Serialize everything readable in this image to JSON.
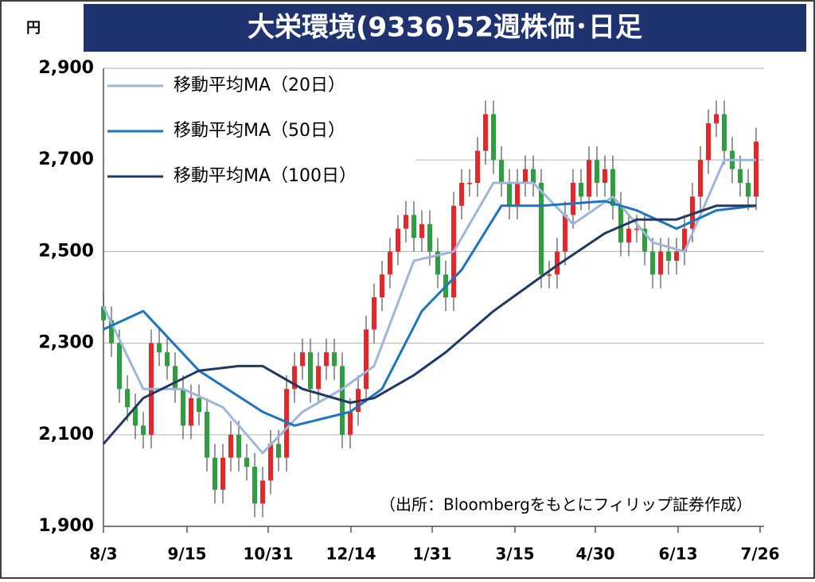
{
  "chart_data": {
    "type": "candlestick",
    "title": "大栄環境(9336)52週株価･日足",
    "y_unit": "円",
    "note": "（出所：Bloombergをもとにフィリップ証券作成）",
    "up_color": "#e8262a",
    "down_color": "#2e9e3f",
    "x": [
      0,
      1,
      2,
      3,
      4,
      5,
      6,
      7,
      8,
      9,
      10,
      11,
      12,
      13,
      14,
      15,
      16,
      17,
      18,
      19,
      20,
      21,
      22,
      23,
      24,
      25,
      26,
      27,
      28,
      29,
      30,
      31,
      32,
      33,
      34,
      35,
      36,
      37,
      38,
      39,
      40,
      41,
      42,
      43,
      44,
      45,
      46,
      47,
      48,
      49,
      50,
      51,
      52,
      53,
      54,
      55,
      56,
      57,
      58,
      59,
      60,
      61,
      62,
      63,
      64,
      65,
      66,
      67,
      68,
      69,
      70,
      71,
      72,
      73,
      74,
      75,
      76,
      77,
      78,
      79,
      80,
      81,
      82
    ],
    "open": [
      2380,
      2350,
      2300,
      2200,
      2160,
      2120,
      2100,
      2300,
      2280,
      2250,
      2200,
      2120,
      2180,
      2150,
      2050,
      1980,
      2050,
      2100,
      2050,
      2030,
      1950,
      2000,
      2080,
      2050,
      2200,
      2250,
      2280,
      2200,
      2250,
      2280,
      2250,
      2100,
      2150,
      2200,
      2330,
      2400,
      2450,
      2500,
      2550,
      2580,
      2530,
      2560,
      2500,
      2450,
      2400,
      2600,
      2650,
      2650,
      2720,
      2800,
      2700,
      2650,
      2600,
      2650,
      2680,
      2650,
      2450,
      2450,
      2500,
      2580,
      2650,
      2620,
      2700,
      2650,
      2680,
      2600,
      2520,
      2550,
      2550,
      2500,
      2450,
      2500,
      2480,
      2500,
      2550,
      2620,
      2700,
      2780,
      2800,
      2720,
      2680,
      2650,
      2620
    ],
    "high": [
      2410,
      2380,
      2330,
      2230,
      2190,
      2150,
      2330,
      2330,
      2310,
      2280,
      2230,
      2210,
      2210,
      2180,
      2080,
      2080,
      2130,
      2130,
      2080,
      2060,
      2030,
      2110,
      2110,
      2230,
      2280,
      2310,
      2310,
      2280,
      2310,
      2310,
      2280,
      2180,
      2230,
      2360,
      2430,
      2480,
      2530,
      2580,
      2610,
      2610,
      2590,
      2590,
      2530,
      2480,
      2630,
      2680,
      2680,
      2750,
      2830,
      2830,
      2730,
      2680,
      2680,
      2710,
      2710,
      2680,
      2480,
      2530,
      2610,
      2680,
      2680,
      2730,
      2730,
      2710,
      2710,
      2630,
      2580,
      2580,
      2580,
      2530,
      2530,
      2530,
      2530,
      2580,
      2650,
      2730,
      2810,
      2830,
      2830,
      2750,
      2710,
      2680,
      2770
    ],
    "low": [
      2320,
      2270,
      2170,
      2130,
      2090,
      2070,
      2070,
      2250,
      2220,
      2170,
      2090,
      2090,
      2120,
      2020,
      1950,
      1950,
      2020,
      2020,
      2000,
      1920,
      1920,
      1970,
      2020,
      2020,
      2170,
      2220,
      2170,
      2170,
      2220,
      2220,
      2070,
      2070,
      2120,
      2170,
      2300,
      2370,
      2420,
      2470,
      2520,
      2500,
      2500,
      2470,
      2420,
      2370,
      2370,
      2570,
      2620,
      2620,
      2690,
      2670,
      2620,
      2570,
      2570,
      2620,
      2620,
      2420,
      2420,
      2420,
      2470,
      2550,
      2590,
      2590,
      2620,
      2620,
      2570,
      2490,
      2490,
      2520,
      2470,
      2420,
      2420,
      2450,
      2450,
      2470,
      2520,
      2590,
      2670,
      2750,
      2690,
      2650,
      2620,
      2590,
      2590
    ],
    "close": [
      2350,
      2300,
      2200,
      2160,
      2120,
      2100,
      2300,
      2280,
      2250,
      2200,
      2120,
      2180,
      2150,
      2050,
      1980,
      2050,
      2100,
      2050,
      2030,
      1950,
      2000,
      2080,
      2050,
      2200,
      2250,
      2280,
      2200,
      2250,
      2280,
      2250,
      2100,
      2150,
      2200,
      2330,
      2400,
      2450,
      2500,
      2550,
      2580,
      2530,
      2560,
      2500,
      2450,
      2400,
      2600,
      2650,
      2650,
      2720,
      2800,
      2700,
      2650,
      2600,
      2650,
      2680,
      2650,
      2450,
      2450,
      2500,
      2580,
      2650,
      2620,
      2700,
      2650,
      2680,
      2600,
      2520,
      2550,
      2550,
      2500,
      2450,
      2500,
      2480,
      2500,
      2550,
      2620,
      2700,
      2780,
      2800,
      2720,
      2680,
      2650,
      2620,
      2740
    ],
    "series": [
      {
        "name": "移動平均MA（20日）",
        "color": "#9db6d9",
        "x": [
          0,
          5,
          10,
          15,
          20,
          25,
          30,
          34,
          39,
          44,
          49,
          54,
          59,
          64,
          69,
          73,
          78,
          82
        ],
        "values": [
          2380,
          2200,
          2200,
          2160,
          2060,
          2150,
          2200,
          2250,
          2480,
          2500,
          2650,
          2650,
          2560,
          2620,
          2520,
          2500,
          2700,
          2700
        ]
      },
      {
        "name": "移動平均MA（50日）",
        "color": "#1f74c0",
        "x": [
          0,
          5,
          12,
          20,
          24,
          31,
          35,
          40,
          45,
          50,
          55,
          63,
          67,
          72,
          77,
          82
        ],
        "values": [
          2330,
          2370,
          2240,
          2150,
          2120,
          2150,
          2200,
          2370,
          2460,
          2600,
          2600,
          2610,
          2590,
          2550,
          2590,
          2600
        ]
      },
      {
        "name": "移動平均MA（100日）",
        "color": "#1f3864",
        "x": [
          0,
          5,
          12,
          17,
          20,
          25,
          31,
          34,
          39,
          43,
          49,
          53,
          57,
          63,
          67,
          72,
          77,
          82
        ],
        "values": [
          2080,
          2180,
          2240,
          2250,
          2250,
          2200,
          2170,
          2180,
          2230,
          2280,
          2370,
          2420,
          2470,
          2540,
          2570,
          2570,
          2600,
          2600
        ]
      }
    ],
    "xlim": [
      0,
      83
    ],
    "xticks": [
      {
        "value": 0,
        "label": "8/3"
      },
      {
        "value": 10.5,
        "label": "9/15"
      },
      {
        "value": 20.7,
        "label": "10/31"
      },
      {
        "value": 31.1,
        "label": "12/14"
      },
      {
        "value": 41.3,
        "label": "1/31"
      },
      {
        "value": 51.7,
        "label": "3/15"
      },
      {
        "value": 61.8,
        "label": "4/30"
      },
      {
        "value": 72.2,
        "label": "6/13"
      },
      {
        "value": 82.5,
        "label": "7/26"
      }
    ],
    "ylim": [
      1900,
      2900
    ],
    "yticks": [
      {
        "value": 1900,
        "label": "1,900"
      },
      {
        "value": 2100,
        "label": "2,100"
      },
      {
        "value": 2300,
        "label": "2,300"
      },
      {
        "value": 2500,
        "label": "2,500"
      },
      {
        "value": 2700,
        "label": "2,700"
      },
      {
        "value": 2900,
        "label": "2,900"
      }
    ],
    "grid": true,
    "legend": "upper left"
  }
}
